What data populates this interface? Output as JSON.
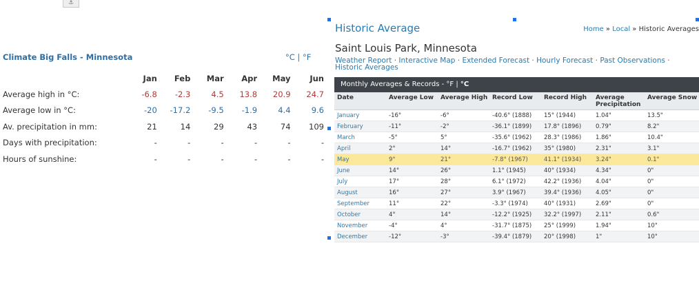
{
  "toolbar": {
    "anchor_symbol": "⚓"
  },
  "climate": {
    "title": "Climate Big Falls - Minnesota",
    "unit_c": "°C",
    "unit_sep": " | ",
    "unit_f": "°F",
    "months": [
      "Jan",
      "Feb",
      "Mar",
      "Apr",
      "May",
      "Jun"
    ],
    "rows": [
      {
        "label": "Average high in °C:",
        "values": [
          "-6.8",
          "-2.3",
          "4.5",
          "13.8",
          "20.9",
          "24.7"
        ]
      },
      {
        "label": "Average low in °C:",
        "values": [
          "-20",
          "-17.2",
          "-9.5",
          "-1.9",
          "4.4",
          "9.6"
        ]
      },
      {
        "label": "Av. precipitation in mm:",
        "values": [
          "21",
          "14",
          "29",
          "43",
          "74",
          "109"
        ]
      },
      {
        "label": "Days with precipitation:",
        "values": [
          "-",
          "-",
          "-",
          "-",
          "-",
          "-"
        ]
      },
      {
        "label": "Hours of sunshine:",
        "values": [
          "-",
          "-",
          "-",
          "-",
          "-",
          "-"
        ]
      }
    ]
  },
  "historic": {
    "title": "Historic Average",
    "breadcrumb": {
      "home": "Home",
      "sep": " » ",
      "local": "Local",
      "current": "Historic Averages"
    },
    "city": "Saint Louis Park, Minnesota",
    "subnav": [
      "Weather Report",
      "Interactive Map",
      "Extended Forecast",
      "Hourly Forecast",
      "Past Observations",
      "Historic Averages"
    ],
    "subnav_sep": " · ",
    "table_header": {
      "label": "Monthly Averages & Records -",
      "unit_f": "°F",
      "unit_sep": " | ",
      "unit_c": "°C"
    },
    "columns": [
      "Date",
      "Average Low",
      "Average High",
      "Record Low",
      "Record High",
      "Average Precipitation",
      "Average Snow"
    ],
    "rows": [
      [
        "January",
        "-16°",
        "-6°",
        "-40.6° (1888)",
        "15° (1944)",
        "1.04\"",
        "13.5\""
      ],
      [
        "February",
        "-11°",
        "-2°",
        "-36.1° (1899)",
        "17.8° (1896)",
        "0.79\"",
        "8.2\""
      ],
      [
        "March",
        "-5°",
        "5°",
        "-35.6° (1962)",
        "28.3° (1986)",
        "1.86\"",
        "10.4\""
      ],
      [
        "April",
        "2°",
        "14°",
        "-16.7° (1962)",
        "35° (1980)",
        "2.31\"",
        "3.1\""
      ],
      [
        "May",
        "9°",
        "21°",
        "-7.8° (1967)",
        "41.1° (1934)",
        "3.24\"",
        "0.1\""
      ],
      [
        "June",
        "14°",
        "26°",
        "1.1° (1945)",
        "40° (1934)",
        "4.34\"",
        "0\""
      ],
      [
        "July",
        "17°",
        "28°",
        "6.1° (1972)",
        "42.2° (1936)",
        "4.04\"",
        "0\""
      ],
      [
        "August",
        "16°",
        "27°",
        "3.9° (1967)",
        "39.4° (1936)",
        "4.05\"",
        "0\""
      ],
      [
        "September",
        "11°",
        "22°",
        "-3.3° (1974)",
        "40° (1931)",
        "2.69\"",
        "0\""
      ],
      [
        "October",
        "4°",
        "14°",
        "-12.2° (1925)",
        "32.2° (1997)",
        "2.11\"",
        "0.6\""
      ],
      [
        "November",
        "-4°",
        "4°",
        "-31.7° (1875)",
        "25° (1999)",
        "1.94\"",
        "10\""
      ],
      [
        "December",
        "-12°",
        "-3°",
        "-39.4° (1879)",
        "20° (1998)",
        "1\"",
        "10\""
      ]
    ],
    "highlight_month": "May"
  }
}
